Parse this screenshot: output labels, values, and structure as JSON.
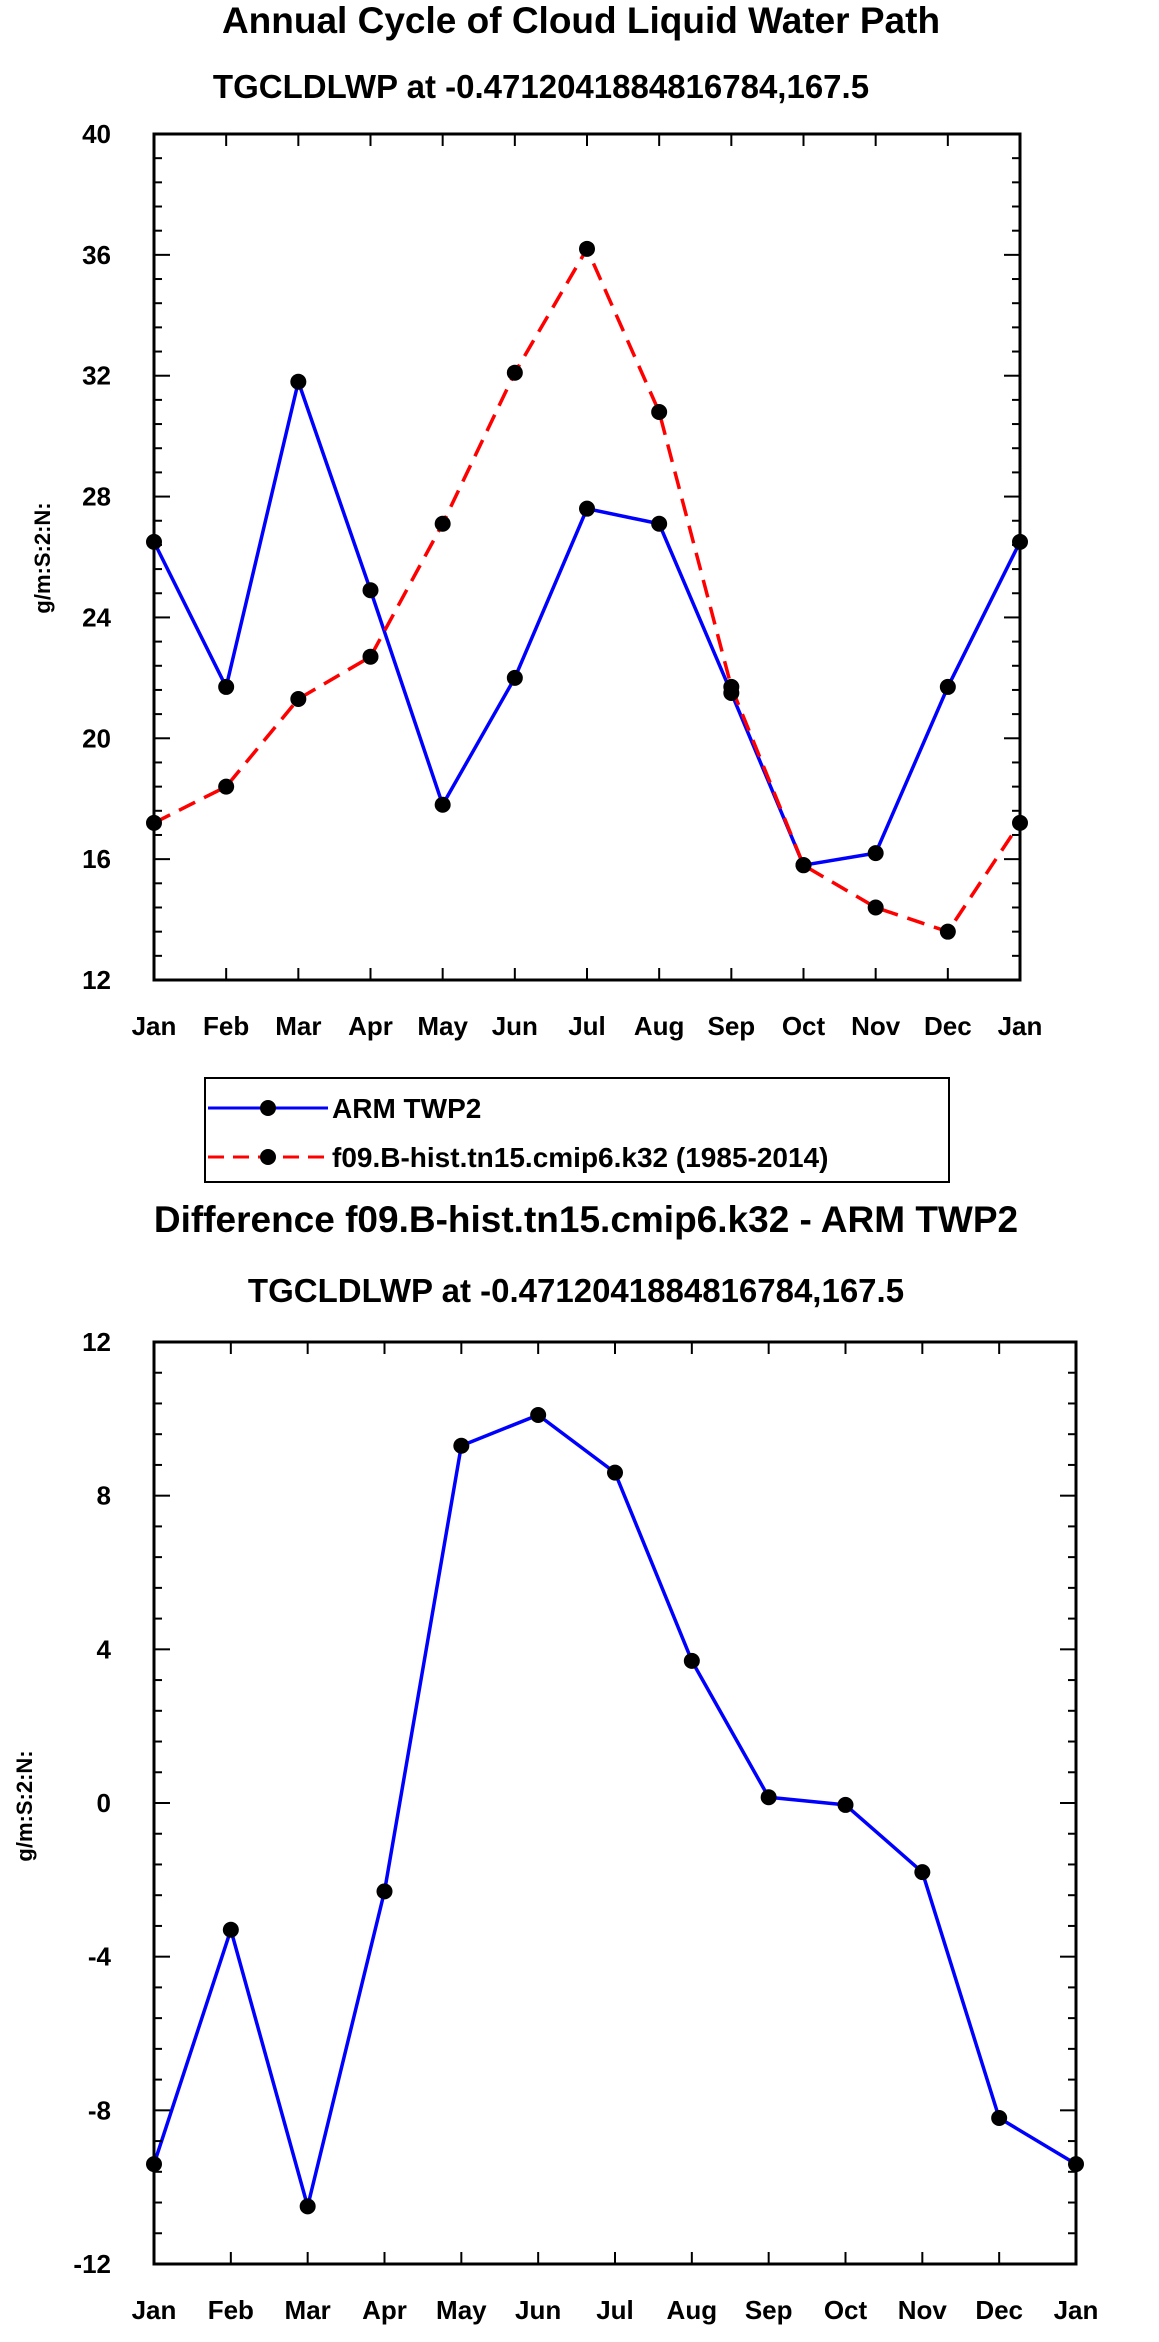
{
  "chart_data": [
    {
      "type": "line",
      "title": "Annual Cycle of Cloud Liquid Water Path",
      "subtitle": "TGCLDLWP at -0.4712041884816784,167.5",
      "xlabel": "",
      "ylabel": "g/m:S:2:N:",
      "categories": [
        "Jan",
        "Feb",
        "Mar",
        "Apr",
        "May",
        "Jun",
        "Jul",
        "Aug",
        "Sep",
        "Oct",
        "Nov",
        "Dec",
        "Jan"
      ],
      "ylim": [
        12,
        40
      ],
      "yticks": [
        12,
        16,
        20,
        24,
        28,
        32,
        36,
        40
      ],
      "series": [
        {
          "name": "ARM TWP2",
          "color": "#0000ff",
          "dash": "solid",
          "values": [
            26.5,
            21.7,
            31.8,
            24.9,
            17.8,
            22.0,
            27.6,
            27.1,
            21.5,
            15.8,
            16.2,
            21.7,
            26.5
          ]
        },
        {
          "name": "f09.B-hist.tn15.cmip6.k32 (1985-2014)",
          "color": "#ff0000",
          "dash": "dashed",
          "values": [
            17.2,
            18.4,
            21.3,
            22.7,
            27.1,
            32.1,
            36.2,
            30.8,
            21.7,
            15.8,
            14.4,
            13.6,
            17.2
          ]
        }
      ],
      "legend": "below"
    },
    {
      "type": "line",
      "title": "Difference f09.B-hist.tn15.cmip6.k32 - ARM TWP2",
      "subtitle": "TGCLDLWP at -0.4712041884816784,167.5",
      "xlabel": "",
      "ylabel": "g/m:S:2:N:",
      "categories": [
        "Jan",
        "Feb",
        "Mar",
        "Apr",
        "May",
        "Jun",
        "Jul",
        "Aug",
        "Sep",
        "Oct",
        "Nov",
        "Dec",
        "Jan"
      ],
      "ylim": [
        -12,
        12
      ],
      "yticks": [
        -12,
        -8,
        -4,
        0,
        4,
        8,
        12
      ],
      "series": [
        {
          "name": "Difference",
          "color": "#0000ff",
          "dash": "solid",
          "values": [
            -9.4,
            -3.3,
            -10.5,
            -2.3,
            9.3,
            10.1,
            8.6,
            3.7,
            0.15,
            -0.05,
            -1.8,
            -8.2,
            -9.4
          ]
        }
      ]
    }
  ]
}
